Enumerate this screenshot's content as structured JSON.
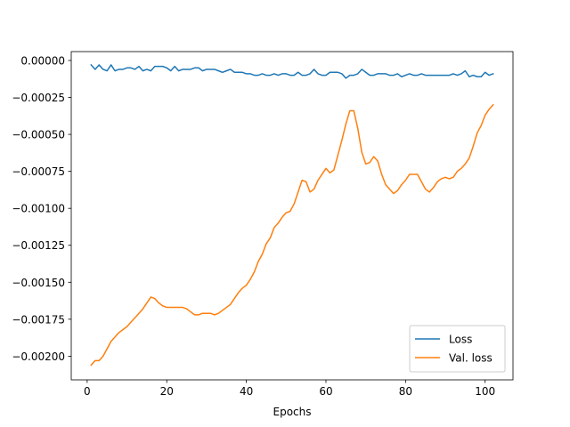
{
  "chart_data": {
    "type": "line",
    "title": "",
    "xlabel": "Epochs",
    "ylabel": "",
    "xlim": [
      -4,
      107
    ],
    "ylim": [
      -0.00216,
      6e-05
    ],
    "x_ticks": [
      {
        "value": 0,
        "label": "0"
      },
      {
        "value": 20,
        "label": "20"
      },
      {
        "value": 40,
        "label": "40"
      },
      {
        "value": 60,
        "label": "60"
      },
      {
        "value": 80,
        "label": "80"
      },
      {
        "value": 100,
        "label": "100"
      }
    ],
    "y_ticks": [
      {
        "value": 0.0,
        "label": "0.00000"
      },
      {
        "value": -0.00025,
        "label": "−0.00025"
      },
      {
        "value": -0.0005,
        "label": "−0.00050"
      },
      {
        "value": -0.00075,
        "label": "−0.00075"
      },
      {
        "value": -0.001,
        "label": "−0.00100"
      },
      {
        "value": -0.00125,
        "label": "−0.00125"
      },
      {
        "value": -0.0015,
        "label": "−0.00150"
      },
      {
        "value": -0.00175,
        "label": "−0.00175"
      },
      {
        "value": -0.002,
        "label": "−0.00200"
      }
    ],
    "grid": false,
    "legend": "lower-right",
    "series": [
      {
        "name": "Loss",
        "color": "#1f77b4",
        "x": [
          1,
          2,
          3,
          4,
          5,
          6,
          7,
          8,
          9,
          10,
          11,
          12,
          13,
          14,
          15,
          16,
          17,
          18,
          19,
          20,
          21,
          22,
          23,
          24,
          25,
          26,
          27,
          28,
          29,
          30,
          31,
          32,
          33,
          34,
          35,
          36,
          37,
          38,
          39,
          40,
          41,
          42,
          43,
          44,
          45,
          46,
          47,
          48,
          49,
          50,
          51,
          52,
          53,
          54,
          55,
          56,
          57,
          58,
          59,
          60,
          61,
          62,
          63,
          64,
          65,
          66,
          67,
          68,
          69,
          70,
          71,
          72,
          73,
          74,
          75,
          76,
          77,
          78,
          79,
          80,
          81,
          82,
          83,
          84,
          85,
          86,
          87,
          88,
          89,
          90,
          91,
          92,
          93,
          94,
          95,
          96,
          97,
          98,
          99,
          100,
          101,
          102
        ],
        "y": [
          -3e-05,
          -6e-05,
          -3e-05,
          -6e-05,
          -7e-05,
          -3e-05,
          -7e-05,
          -6e-05,
          -6e-05,
          -5e-05,
          -5e-05,
          -6e-05,
          -4e-05,
          -7e-05,
          -6e-05,
          -7e-05,
          -4e-05,
          -4e-05,
          -4e-05,
          -5e-05,
          -7e-05,
          -4e-05,
          -7e-05,
          -6e-05,
          -6e-05,
          -6e-05,
          -5e-05,
          -5e-05,
          -7e-05,
          -6e-05,
          -6e-05,
          -6e-05,
          -7e-05,
          -8e-05,
          -7e-05,
          -6e-05,
          -8e-05,
          -8e-05,
          -8e-05,
          -9e-05,
          -9e-05,
          -0.0001,
          -0.0001,
          -9e-05,
          -0.0001,
          -0.0001,
          -9e-05,
          -0.0001,
          -9e-05,
          -9e-05,
          -0.0001,
          -0.0001,
          -8e-05,
          -0.0001,
          -0.0001,
          -9e-05,
          -6e-05,
          -9e-05,
          -0.0001,
          -0.0001,
          -8e-05,
          -8e-05,
          -8e-05,
          -9e-05,
          -0.00012,
          -0.0001,
          -0.0001,
          -9e-05,
          -6e-05,
          -8e-05,
          -0.0001,
          -0.0001,
          -9e-05,
          -9e-05,
          -9e-05,
          -0.0001,
          -0.0001,
          -9e-05,
          -0.00011,
          -0.0001,
          -9e-05,
          -0.0001,
          -0.0001,
          -9e-05,
          -0.0001,
          -0.0001,
          -0.0001,
          -0.0001,
          -0.0001,
          -0.0001,
          -0.0001,
          -9e-05,
          -0.0001,
          -9e-05,
          -7e-05,
          -0.00011,
          -0.0001,
          -0.00011,
          -0.00011,
          -8e-05,
          -0.0001,
          -9e-05
        ]
      },
      {
        "name": "Val. loss",
        "color": "#ff7f0e",
        "x": [
          1,
          2,
          3,
          4,
          5,
          6,
          7,
          8,
          9,
          10,
          11,
          12,
          13,
          14,
          15,
          16,
          17,
          18,
          19,
          20,
          21,
          22,
          23,
          24,
          25,
          26,
          27,
          28,
          29,
          30,
          31,
          32,
          33,
          34,
          35,
          36,
          37,
          38,
          39,
          40,
          41,
          42,
          43,
          44,
          45,
          46,
          47,
          48,
          49,
          50,
          51,
          52,
          53,
          54,
          55,
          56,
          57,
          58,
          59,
          60,
          61,
          62,
          63,
          64,
          65,
          66,
          67,
          68,
          69,
          70,
          71,
          72,
          73,
          74,
          75,
          76,
          77,
          78,
          79,
          80,
          81,
          82,
          83,
          84,
          85,
          86,
          87,
          88,
          89,
          90,
          91,
          92,
          93,
          94,
          95,
          96,
          97,
          98,
          99,
          100,
          101,
          102
        ],
        "y": [
          -0.00206,
          -0.00203,
          -0.00203,
          -0.002,
          -0.00195,
          -0.0019,
          -0.00187,
          -0.00184,
          -0.00182,
          -0.0018,
          -0.00177,
          -0.00174,
          -0.00171,
          -0.00168,
          -0.00164,
          -0.0016,
          -0.00161,
          -0.00164,
          -0.00166,
          -0.00167,
          -0.00167,
          -0.00167,
          -0.00167,
          -0.00167,
          -0.00168,
          -0.0017,
          -0.00172,
          -0.00172,
          -0.00171,
          -0.00171,
          -0.00171,
          -0.00172,
          -0.00171,
          -0.00169,
          -0.00167,
          -0.00165,
          -0.00161,
          -0.00157,
          -0.00154,
          -0.00152,
          -0.00148,
          -0.00143,
          -0.00136,
          -0.00131,
          -0.00124,
          -0.0012,
          -0.00113,
          -0.0011,
          -0.00106,
          -0.00103,
          -0.00102,
          -0.00097,
          -0.00089,
          -0.00081,
          -0.00082,
          -0.00089,
          -0.00087,
          -0.00081,
          -0.00077,
          -0.00073,
          -0.00076,
          -0.00074,
          -0.00064,
          -0.00054,
          -0.00043,
          -0.00034,
          -0.00034,
          -0.00046,
          -0.00062,
          -0.0007,
          -0.00069,
          -0.00065,
          -0.00068,
          -0.00077,
          -0.00084,
          -0.00087,
          -0.0009,
          -0.00088,
          -0.00084,
          -0.00081,
          -0.00077,
          -0.00077,
          -0.00077,
          -0.00082,
          -0.00087,
          -0.00089,
          -0.00086,
          -0.00082,
          -0.0008,
          -0.00079,
          -0.0008,
          -0.00079,
          -0.00075,
          -0.00073,
          -0.0007,
          -0.00066,
          -0.00058,
          -0.00049,
          -0.00044,
          -0.00037,
          -0.00033,
          -0.0003
        ]
      }
    ]
  }
}
